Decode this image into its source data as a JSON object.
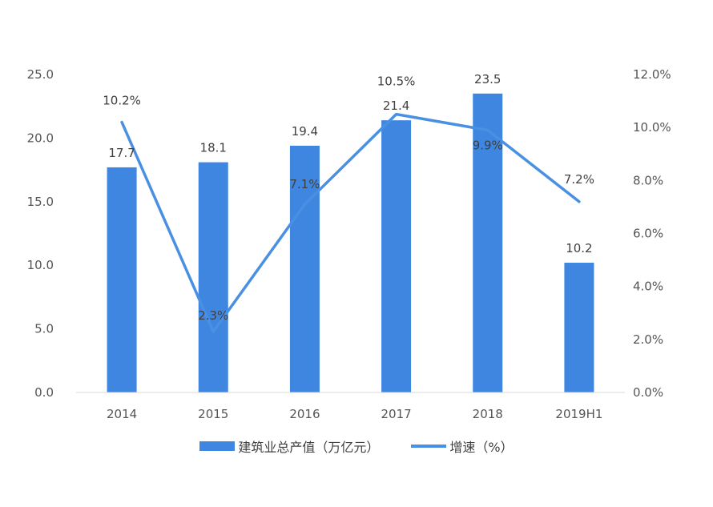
{
  "chart_data": {
    "type": "bar",
    "categories": [
      "2014",
      "2015",
      "2016",
      "2017",
      "2018",
      "2019H1"
    ],
    "series": [
      {
        "name": "建筑业总产值（万亿元）",
        "type": "bar",
        "axis": "left",
        "values": [
          17.7,
          18.1,
          19.4,
          21.4,
          23.5,
          10.2
        ],
        "labels": [
          "17.7",
          "18.1",
          "19.4",
          "21.4",
          "23.5",
          "10.2"
        ],
        "color": "#3f86e0"
      },
      {
        "name": "增速（%）",
        "type": "line",
        "axis": "right",
        "values": [
          10.2,
          2.3,
          7.1,
          10.5,
          9.9,
          7.2
        ],
        "labels": [
          "10.2%",
          "2.3%",
          "7.1%",
          "10.5%",
          "9.9%",
          "7.2%"
        ],
        "color": "#4a90e2"
      }
    ],
    "y_left": {
      "min": 0,
      "max": 25,
      "ticks": [
        "0.0",
        "5.0",
        "10.0",
        "15.0",
        "20.0",
        "25.0"
      ]
    },
    "y_right": {
      "min": 0,
      "max": 12,
      "ticks": [
        "0.0%",
        "2.0%",
        "4.0%",
        "6.0%",
        "8.0%",
        "10.0%",
        "12.0%"
      ]
    },
    "grid": false,
    "legend_position": "bottom"
  }
}
